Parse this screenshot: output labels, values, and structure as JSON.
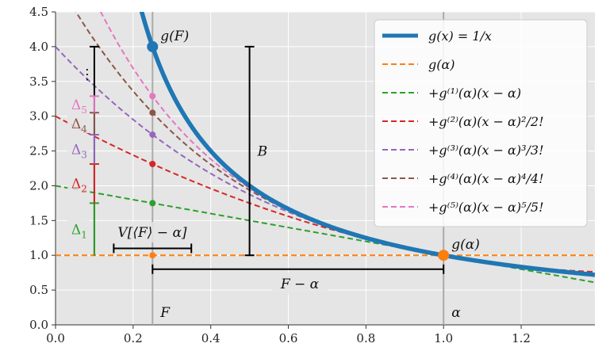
{
  "chart_data": {
    "type": "line",
    "title": "",
    "xlabel": "",
    "ylabel": "",
    "xlim": [
      0.0,
      1.39
    ],
    "ylim": [
      0.0,
      4.5
    ],
    "grid": true,
    "legend_position": "top-right",
    "x_ticks": [
      "0.0",
      "0.2",
      "0.4",
      "0.6",
      "0.8",
      "1.0",
      "1.2"
    ],
    "y_ticks": [
      "0.0",
      "0.5",
      "1.0",
      "1.5",
      "2.0",
      "2.5",
      "3.0",
      "3.5",
      "4.0",
      "4.5"
    ],
    "F": 0.25,
    "alpha": 1.0,
    "colors": {
      "g": "#1f77b4",
      "c0": "#ff7f0e",
      "c1": "#2ca02c",
      "c2": "#d62728",
      "c3": "#9467bd",
      "c4": "#8c564b",
      "c5": "#e377c2",
      "axis_line": "#aaaaaa",
      "bracket": "#000000"
    },
    "series": [
      {
        "name": "g(x) = 1/x",
        "order": -1
      },
      {
        "name": "g(α)",
        "order": 0
      },
      {
        "name": "+g⁽¹⁾(α)(x − α)",
        "order": 1
      },
      {
        "name": "+g⁽²⁾(α)(x − α)²/2!",
        "order": 2
      },
      {
        "name": "+g⁽³⁾(α)(x − α)³/3!",
        "order": 3
      },
      {
        "name": "+g⁽⁴⁾(α)(x − α)⁴/4!",
        "order": 4
      },
      {
        "name": "+g⁽⁵⁾(α)(x − α)⁵/5!",
        "order": 5
      }
    ],
    "taylor_values_at_F": [
      1.0,
      1.75,
      2.3125,
      2.734375,
      3.05078125,
      3.2880859375
    ],
    "g_at_F": 4.0,
    "g_at_alpha": 1.0,
    "annotations": {
      "gF": "g(F)",
      "galpha": "g(α)",
      "B": "B",
      "F_minus_alpha": "F − α",
      "F": "F",
      "alpha": "α",
      "V": "V[⟨F⟩ − α]",
      "dots": "⋮"
    },
    "deltas": [
      "Δ1",
      "Δ2",
      "Δ3",
      "Δ4",
      "Δ5"
    ],
    "delta_labels": [
      "Δ",
      "Δ",
      "Δ",
      "Δ",
      "Δ"
    ],
    "delta_subscripts": [
      "1",
      "2",
      "3",
      "4",
      "5"
    ],
    "V_bracket_x": [
      0.15,
      0.35
    ],
    "F_minus_alpha_y": 0.8,
    "B_bracket_x": 0.5
  }
}
